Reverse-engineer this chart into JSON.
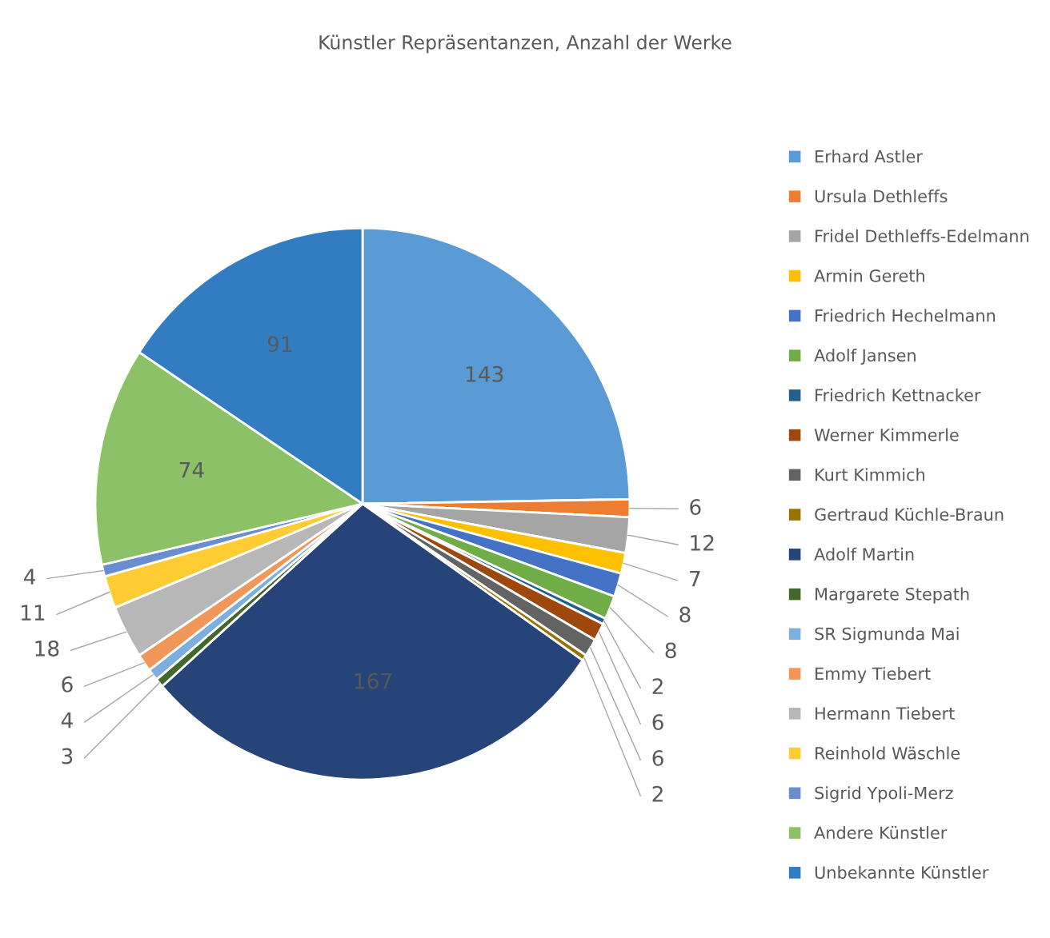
{
  "chart_data": {
    "type": "pie",
    "title": "Künstler Repräsentanzen, Anzahl der Werke",
    "categories": [
      "Erhard Astler",
      "Ursula Dethleffs",
      "Fridel Dethleffs-Edelmann",
      "Armin Gereth",
      "Friedrich Hechelmann",
      "Adolf Jansen",
      "Friedrich Kettnacker",
      "Werner Kimmerle",
      "Kurt Kimmich",
      "Gertraud Küchle-Braun",
      "Adolf Martin",
      "Margarete Stepath",
      "SR Sigmunda Mai",
      "Emmy Tiebert",
      "Hermann Tiebert",
      "Reinhold Wäschle",
      "Sigrid Ypoli-Merz",
      "Andere Künstler",
      "Unbekannte Künstler"
    ],
    "values": [
      143,
      6,
      12,
      7,
      8,
      8,
      2,
      6,
      6,
      2,
      167,
      3,
      4,
      6,
      18,
      11,
      4,
      74,
      91
    ],
    "colors": [
      "#5b9bd5",
      "#ed7d31",
      "#a5a5a5",
      "#ffc000",
      "#4472c4",
      "#70ad47",
      "#255e91",
      "#9e480e",
      "#636363",
      "#997300",
      "#264478",
      "#43682b",
      "#7cafdd",
      "#f1975a",
      "#b7b7b7",
      "#ffcd33",
      "#698ed0",
      "#8cc168",
      "#327dc2"
    ],
    "data_labels": true,
    "legend": "right"
  }
}
